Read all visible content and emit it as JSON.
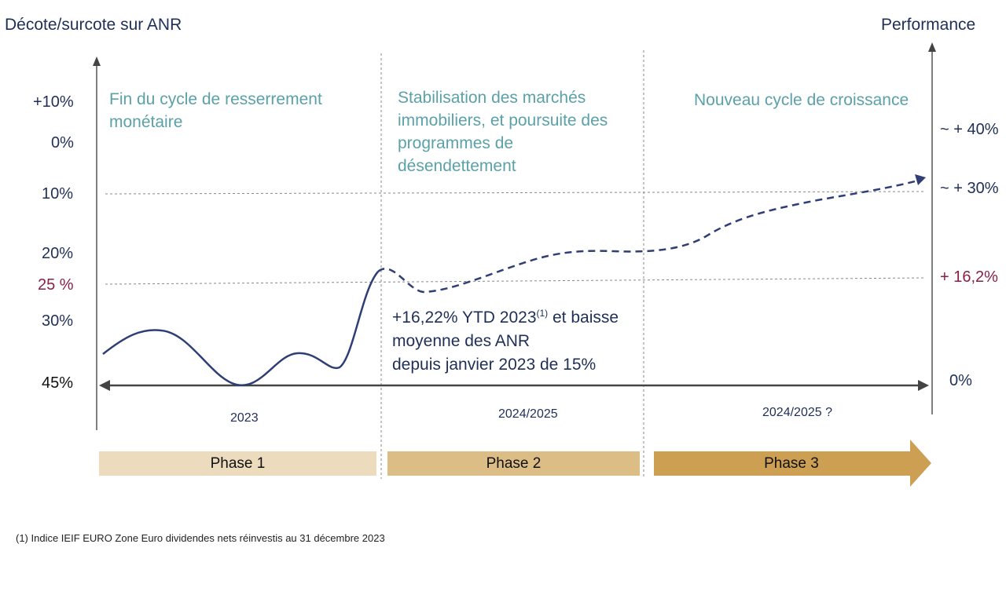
{
  "chart_data": {
    "type": "line",
    "title_left": "Décote/surcote sur ANR",
    "title_right": "Performance",
    "left_axis_labels": [
      "+10%",
      "0%",
      "10%",
      "20%",
      "25 %",
      "30%",
      "45%"
    ],
    "right_axis_labels": [
      "~ + 40%",
      "~ + 30%",
      "+ 16,2%",
      "0%"
    ],
    "phases": [
      {
        "title": "Fin du cycle de resserrement monétaire",
        "period": "2023",
        "label": "Phase 1"
      },
      {
        "title": "Stabilisation des marchés immobiliers, et poursuite des programmes de désendettement",
        "period": "2024/2025",
        "label": "Phase 2"
      },
      {
        "title": "Nouveau cycle de croissance",
        "period": "2024/2025 ?",
        "label": "Phase 3"
      }
    ],
    "annotation": {
      "line1_main": "+16,22% YTD 2023",
      "line1_sup": "(1)",
      "line1_end": " et baisse",
      "line2": "moyenne des ANR",
      "line3": "depuis janvier 2023 de 15%"
    },
    "colors": {
      "navy": "#2f3e75",
      "teal": "#5aa1a8",
      "accent": "#8a1f48",
      "phase1": "#ecdcbd",
      "phase2": "#dcbd86",
      "phase3": "#cc9f52"
    }
  },
  "footnote": "(1) Indice IEIF EURO Zone Euro  dividendes nets réinvestis au 31 décembre 2023"
}
